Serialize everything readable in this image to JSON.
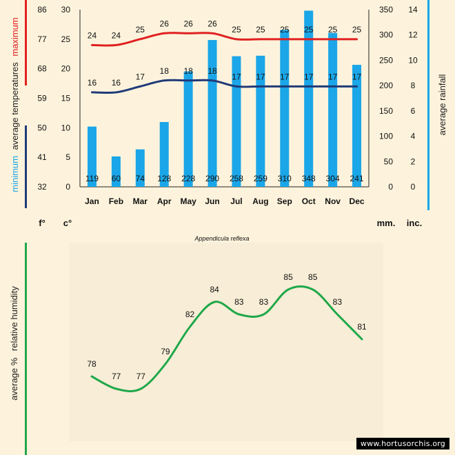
{
  "colors": {
    "background": "#fdf3dc",
    "humidity_panel": "#f8edd6",
    "rain": "#1aa6e8",
    "max_temp": "#e02020",
    "min_temp": "#1f3a78",
    "humidity": "#1fa84a",
    "rain_axis_line": "#1aa6e8"
  },
  "labels": {
    "minimum": "minimum",
    "temps_mid": "average  temperatures",
    "maximum": "maximum",
    "rainfall": "average rainfall",
    "humidity_prefix": "average %",
    "humidity_rest": "relative humidity",
    "unit_f": "f°",
    "unit_c": "c°",
    "unit_mm": "mm.",
    "unit_inc": "inc.",
    "species": "Appendicula reflexa"
  },
  "watermark": "www.hortusorchis.org",
  "chart_data": [
    {
      "type": "bar+line",
      "title": "Appendicula reflexa",
      "categories": [
        "Jan",
        "Feb",
        "Mar",
        "Apr",
        "May",
        "Jun",
        "Jul",
        "Aug",
        "Sep",
        "Oct",
        "Nov",
        "Dec"
      ],
      "rainfall_mm": [
        119,
        60,
        74,
        128,
        228,
        290,
        258,
        259,
        310,
        348,
        304,
        241
      ],
      "temperature_max_c": [
        24,
        24,
        25,
        26,
        26,
        26,
        25,
        25,
        25,
        25,
        25,
        25
      ],
      "temperature_min_c": [
        16,
        16,
        17,
        18,
        18,
        18,
        17,
        17,
        17,
        17,
        17,
        17
      ],
      "axes": {
        "fahrenheit_ticks": [
          32,
          41,
          50,
          59,
          68,
          77,
          86
        ],
        "celsius_ticks": [
          0,
          5,
          10,
          15,
          20,
          25,
          30
        ],
        "celsius_range": [
          0,
          30
        ],
        "mm_ticks": [
          0,
          50,
          100,
          150,
          200,
          250,
          300,
          350
        ],
        "mm_range": [
          0,
          350
        ],
        "inch_ticks": [
          0,
          2,
          4,
          6,
          8,
          10,
          12,
          14
        ]
      }
    },
    {
      "type": "line",
      "ylabel": "average % relative humidity",
      "categories": [
        "Jan",
        "Feb",
        "Mar",
        "Apr",
        "May",
        "Jun",
        "Jul",
        "Aug",
        "Sep",
        "Oct",
        "Nov",
        "Dec"
      ],
      "values": [
        78,
        77,
        77,
        79,
        82,
        84,
        83,
        83,
        85,
        85,
        83,
        81
      ],
      "ylim": [
        70,
        90
      ]
    }
  ]
}
